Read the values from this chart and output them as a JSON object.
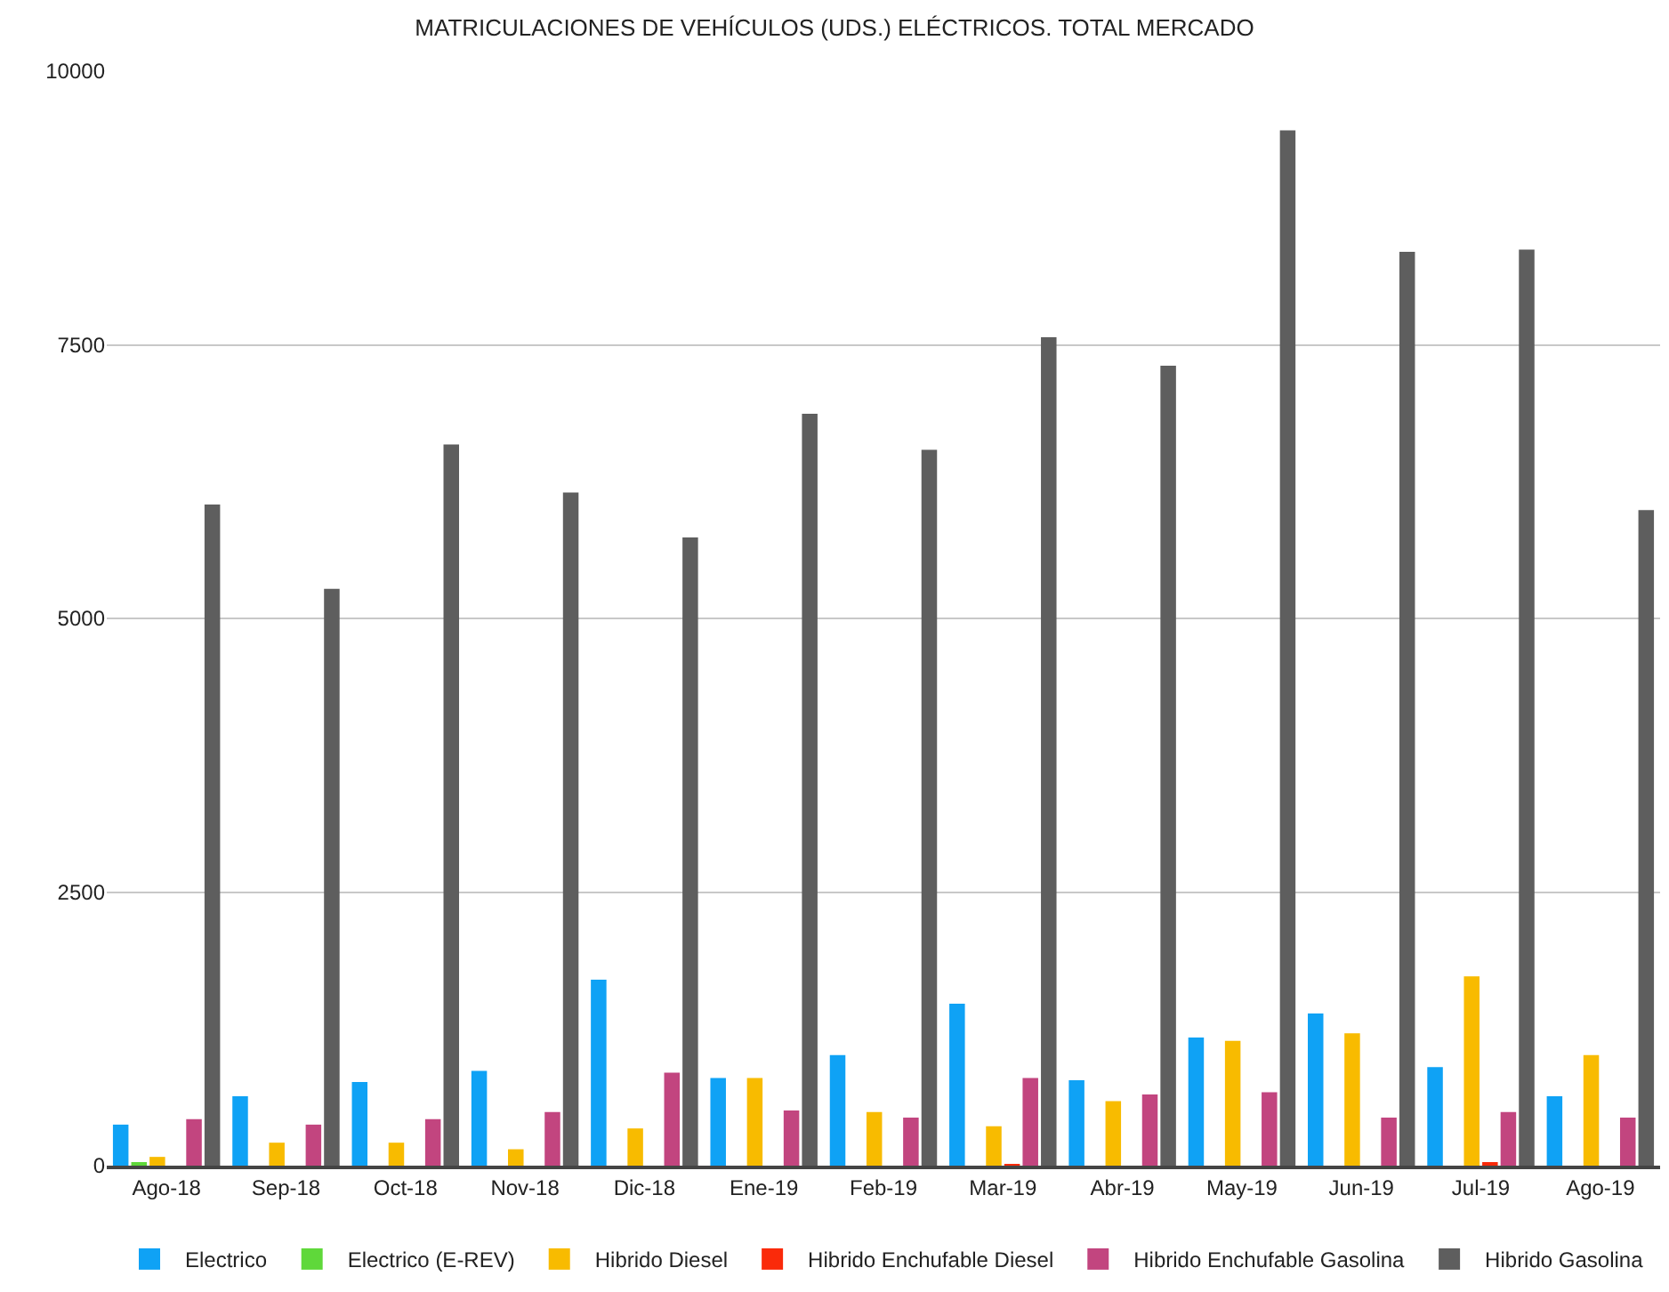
{
  "chart_data": {
    "type": "bar",
    "title": "MATRICULACIONES DE VEHÍCULOS (UDS.) ELÉCTRICOS. TOTAL MERCADO",
    "categories": [
      "Ago-18",
      "Sep-18",
      "Oct-18",
      "Nov-18",
      "Dic-18",
      "Ene-19",
      "Feb-19",
      "Mar-19",
      "Abr-19",
      "May-19",
      "Jun-19",
      "Jul-19",
      "Ago-19"
    ],
    "series": [
      {
        "name": "Electrico",
        "color": "#0fa2f5",
        "values": [
          375,
          635,
          765,
          865,
          1700,
          800,
          1010,
          1480,
          780,
          1170,
          1390,
          900,
          635
        ]
      },
      {
        "name": "Electrico (E-REV)",
        "color": "#5fd83a",
        "values": [
          20,
          0,
          0,
          0,
          0,
          0,
          0,
          0,
          0,
          0,
          0,
          0,
          0
        ]
      },
      {
        "name": "Hibrido Diesel",
        "color": "#f8bb00",
        "values": [
          80,
          210,
          210,
          150,
          340,
          800,
          490,
          360,
          590,
          1140,
          1210,
          1730,
          1010
        ]
      },
      {
        "name": "Hibrido Enchufable Diesel",
        "color": "#fa2a0a",
        "values": [
          0,
          0,
          0,
          0,
          0,
          0,
          0,
          10,
          0,
          0,
          0,
          30,
          0
        ]
      },
      {
        "name": "Hibrido Enchufable Gasolina",
        "color": "#c2457f",
        "values": [
          425,
          375,
          425,
          490,
          850,
          505,
          440,
          800,
          650,
          670,
          440,
          490,
          440
        ]
      },
      {
        "name": "Hibrido Gasolina",
        "color": "#5e5e5e",
        "values": [
          6040,
          5270,
          6590,
          6150,
          5740,
          6870,
          6540,
          7570,
          7310,
          9460,
          8350,
          8370,
          5990
        ]
      }
    ],
    "ylim": [
      0,
      10000
    ],
    "yticks": [
      0,
      2500,
      5000,
      7500,
      10000
    ],
    "grid": "y",
    "legend": "bottom"
  }
}
